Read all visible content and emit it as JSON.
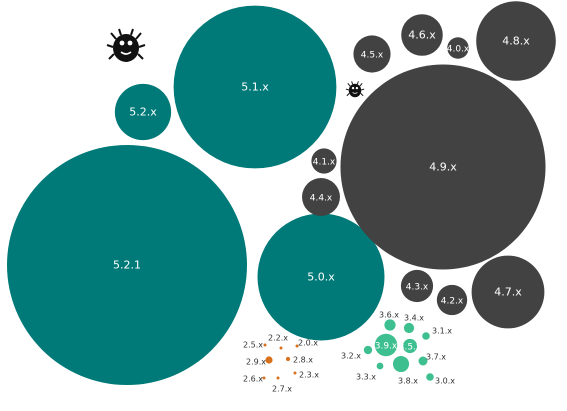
{
  "colors": {
    "teal": "#007a78",
    "gray": "#424242",
    "green": "#3dbf8f",
    "orange": "#d9701c",
    "bug": "#111111",
    "label_light": "#ffffff",
    "label_dark": "#333333"
  },
  "icons": [
    "bug-icon",
    "bug-icon"
  ],
  "chart_data": {
    "type": "bubble",
    "series": [
      {
        "group": "5.x",
        "color": "#007a78",
        "bubbles": [
          {
            "label": "5.2.1",
            "value": 100
          },
          {
            "label": "5.1.x",
            "value": 46
          },
          {
            "label": "5.0.x",
            "value": 28
          },
          {
            "label": "5.2.x",
            "value": 5.5
          }
        ]
      },
      {
        "group": "4.x",
        "color": "#424242",
        "bubbles": [
          {
            "label": "4.9.x",
            "value": 73
          },
          {
            "label": "4.8.x",
            "value": 11
          },
          {
            "label": "4.7.x",
            "value": 9.2
          },
          {
            "label": "4.6.x",
            "value": 3.0
          },
          {
            "label": "4.5.x",
            "value": 2.4
          },
          {
            "label": "4.4.x",
            "value": 2.5
          },
          {
            "label": "4.3.x",
            "value": 1.8
          },
          {
            "label": "4.2.x",
            "value": 1.6
          },
          {
            "label": "4.1.x",
            "value": 1.1
          },
          {
            "label": "4.0.x",
            "value": 0.8
          }
        ]
      },
      {
        "group": "3.x",
        "color": "#3dbf8f",
        "bubbles": [
          {
            "label": "3.9.x",
            "value": 0.88
          },
          {
            "label": "3.8.x",
            "value": 0.45
          },
          {
            "label": "3.5.x",
            "value": 0.35
          },
          {
            "label": "3.6.x",
            "value": 0.22
          },
          {
            "label": "3.4.x",
            "value": 0.18
          },
          {
            "label": "3.7.x",
            "value": 0.14
          },
          {
            "label": "3.2.x",
            "value": 0.12
          },
          {
            "label": "3.1.x",
            "value": 0.1
          },
          {
            "label": "3.3.x",
            "value": 0.08
          },
          {
            "label": "3.0.x",
            "value": 0.1
          }
        ]
      },
      {
        "group": "2.x",
        "color": "#d9701c",
        "bubbles": [
          {
            "label": "2.9.x",
            "value": 0.09
          },
          {
            "label": "2.8.x",
            "value": 0.03
          },
          {
            "label": "2.7.x",
            "value": 0.01
          },
          {
            "label": "2.6.x",
            "value": 0.01
          },
          {
            "label": "2.5.x",
            "value": 0.01
          },
          {
            "label": "2.3.x",
            "value": 0.01
          },
          {
            "label": "2.2.x",
            "value": 0.01
          },
          {
            "label": "2.0.x",
            "value": 0.01
          }
        ]
      }
    ]
  }
}
